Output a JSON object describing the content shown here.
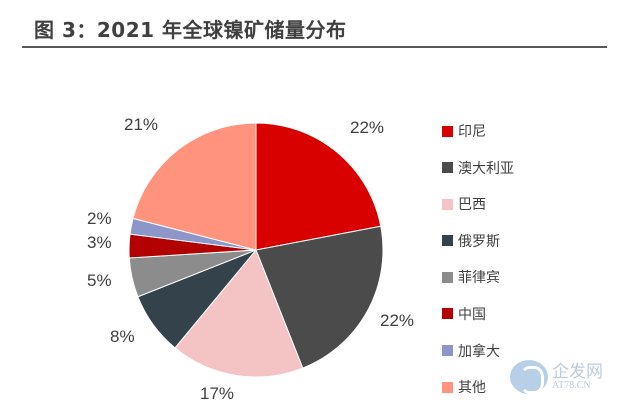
{
  "header": {
    "title": "图 3：2021 年全球镍矿储量分布"
  },
  "chart_data": {
    "type": "pie",
    "title": "图 3：2021 年全球镍矿储量分布",
    "start_angle": "12 o'clock",
    "direction": "clockwise",
    "categories": [
      "印尼",
      "澳大利亚",
      "巴西",
      "俄罗斯",
      "菲律宾",
      "中国",
      "加拿大",
      "其他"
    ],
    "values": [
      22,
      22,
      17,
      8,
      5,
      3,
      2,
      21
    ],
    "labels": [
      "22%",
      "22%",
      "17%",
      "8%",
      "5%",
      "3%",
      "2%",
      "21%"
    ],
    "colors": [
      "#d90000",
      "#4b4b4b",
      "#f4c4c4",
      "#34424c",
      "#8c8c8c",
      "#b30000",
      "#8c96c8",
      "#ff937d"
    ],
    "legend_position": "right"
  },
  "legend": {
    "items": [
      {
        "label": "印尼",
        "color": "#d90000"
      },
      {
        "label": "澳大利亚",
        "color": "#4b4b4b"
      },
      {
        "label": "巴西",
        "color": "#f4c4c4"
      },
      {
        "label": "俄罗斯",
        "color": "#34424c"
      },
      {
        "label": "菲律宾",
        "color": "#8c8c8c"
      },
      {
        "label": "中国",
        "color": "#b30000"
      },
      {
        "label": "加拿大",
        "color": "#8c96c8"
      },
      {
        "label": "其他",
        "color": "#ff937d"
      }
    ]
  },
  "watermark": {
    "cn": "企发网",
    "en": "AT78.CN"
  }
}
